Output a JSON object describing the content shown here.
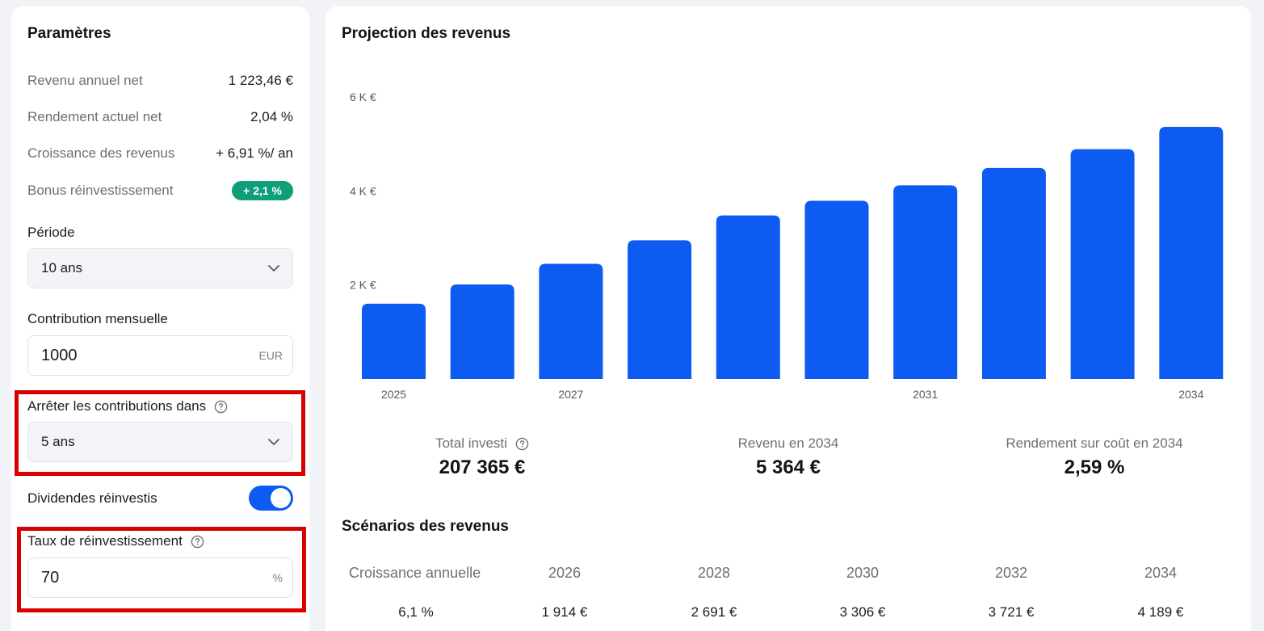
{
  "params": {
    "title": "Paramètres",
    "rows": [
      {
        "label": "Revenu annuel net",
        "value": "1 223,46 €"
      },
      {
        "label": "Rendement actuel net",
        "value": "2,04 %"
      },
      {
        "label": "Croissance des revenus",
        "value": "+ 6,91 %/ an"
      }
    ],
    "bonus_label": "Bonus réinvestissement",
    "bonus_value": "+ 2,1 %",
    "period_label": "Période",
    "period_value": "10 ans",
    "contribution_label": "Contribution mensuelle",
    "contribution_value": "1000",
    "contribution_unit": "EUR",
    "stop_label": "Arrêter les contributions dans",
    "stop_value": "5 ans",
    "dividends_label": "Dividendes réinvestis",
    "dividends_on": true,
    "reinvest_label": "Taux de réinvestissement",
    "reinvest_value": "70",
    "reinvest_unit": "%"
  },
  "projection": {
    "title": "Projection des revenus"
  },
  "chart_data": {
    "type": "bar",
    "title": "Projection des revenus",
    "categories": [
      "2025",
      "2026",
      "2027",
      "2028",
      "2029",
      "2030",
      "2031",
      "2032",
      "2033",
      "2034"
    ],
    "values": [
      1600,
      2010,
      2450,
      2950,
      3480,
      3790,
      4120,
      4490,
      4890,
      5364
    ],
    "ylim": [
      0,
      6000
    ],
    "y_ticks": [
      {
        "value": 2000,
        "label": "2 K €"
      },
      {
        "value": 4000,
        "label": "4 K €"
      },
      {
        "value": 6000,
        "label": "6 K €"
      }
    ],
    "x_tick_labels": [
      {
        "index": 0,
        "label": "2025"
      },
      {
        "index": 2,
        "label": "2027"
      },
      {
        "index": 6,
        "label": "2031"
      },
      {
        "index": 9,
        "label": "2034"
      }
    ],
    "grid": false,
    "bar_color": "#0e5bf1"
  },
  "stats": [
    {
      "label": "Total investi",
      "value": "207 365 €",
      "help": true
    },
    {
      "label": "Revenu en 2034",
      "value": "5 364 €",
      "help": false
    },
    {
      "label": "Rendement sur coût en 2034",
      "value": "2,59 %",
      "help": false
    }
  ],
  "scenarios": {
    "title": "Scénarios des revenus",
    "header": [
      "Croissance annuelle",
      "2026",
      "2028",
      "2030",
      "2032",
      "2034"
    ],
    "rows": [
      [
        "6,1 %",
        "1 914 €",
        "2 691 €",
        "3 306 €",
        "3 721 €",
        "4 189 €"
      ]
    ]
  },
  "colors": {
    "accent": "#0e5bf1",
    "badge": "#0e9f7a",
    "highlight": "#d90000"
  }
}
